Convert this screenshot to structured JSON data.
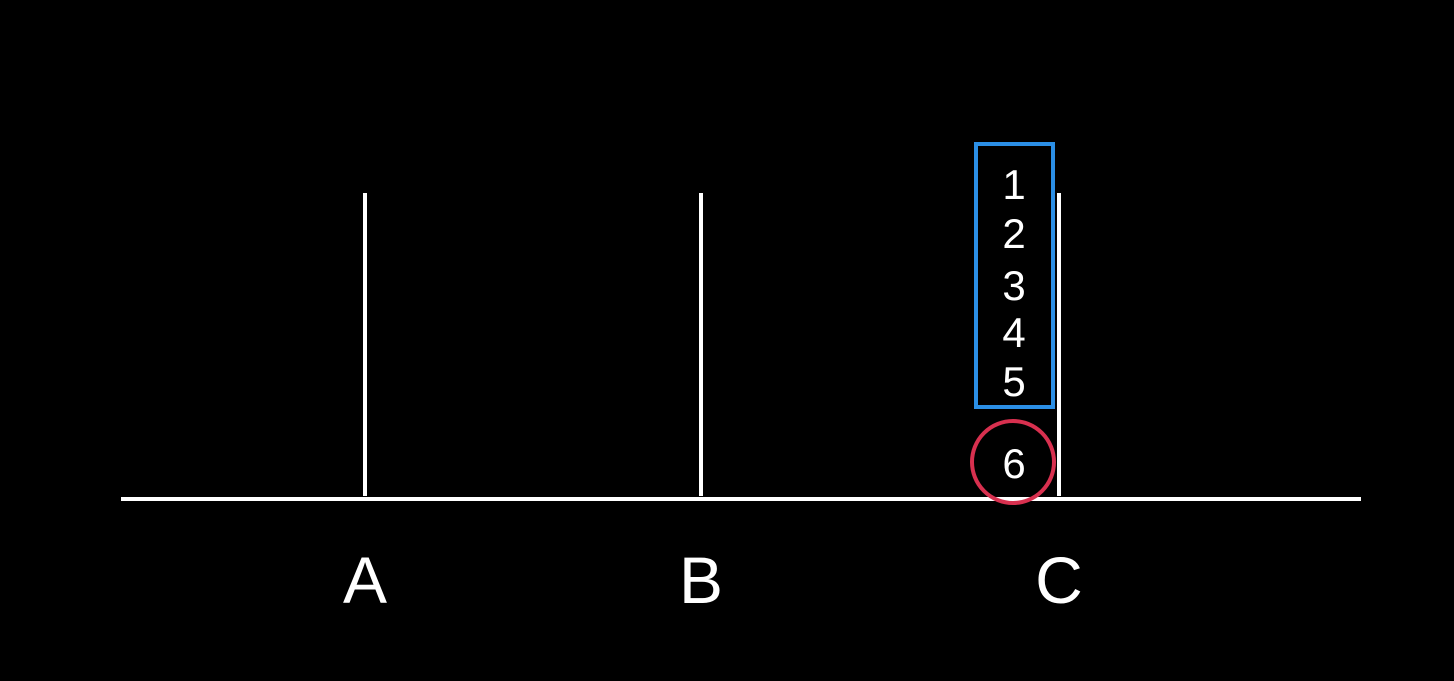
{
  "diagram": {
    "background_color": "#000000",
    "line_color": "#ffffff",
    "stack_box_color": "#2b8fe6",
    "highlight_circle_color": "#d8304f",
    "rods": [
      {
        "label": "A"
      },
      {
        "label": "B"
      },
      {
        "label": "C"
      }
    ],
    "stack_items": [
      "1",
      "2",
      "3",
      "4",
      "5"
    ],
    "highlighted_item": "6"
  }
}
